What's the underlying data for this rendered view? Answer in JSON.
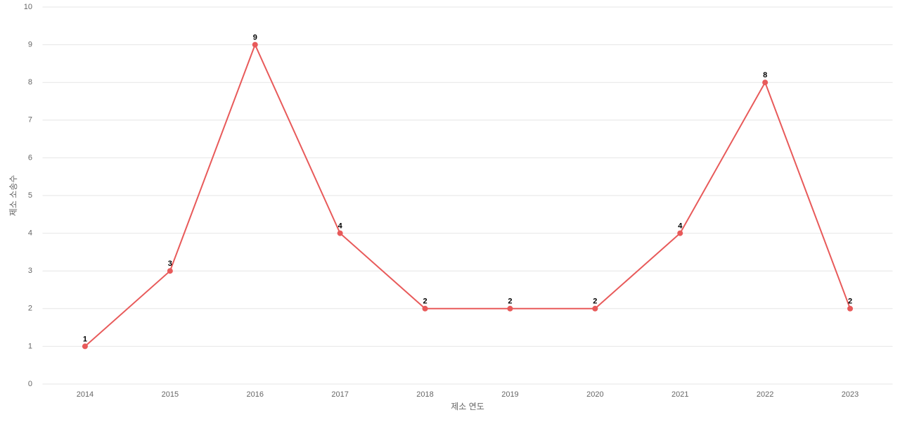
{
  "chart_data": {
    "type": "line",
    "x_label": "제소 연도",
    "y_label": "제소 소송수",
    "categories": [
      "2014",
      "2015",
      "2016",
      "2017",
      "2018",
      "2019",
      "2020",
      "2021",
      "2022",
      "2023"
    ],
    "series": [
      {
        "name": "제소 소송수",
        "color": "#e85a5a",
        "values": [
          1,
          3,
          9,
          4,
          2,
          2,
          2,
          4,
          8,
          2
        ]
      }
    ],
    "ylim": [
      0,
      10
    ],
    "yticks": [
      0,
      1,
      2,
      3,
      4,
      5,
      6,
      7,
      8,
      9,
      10
    ],
    "grid": true
  }
}
